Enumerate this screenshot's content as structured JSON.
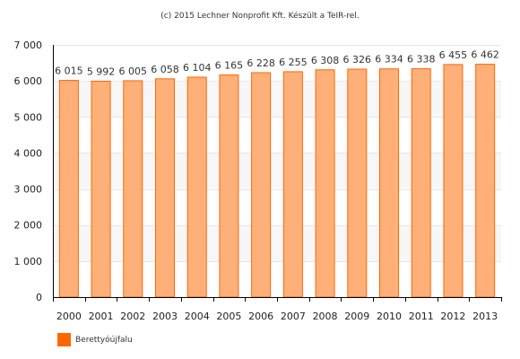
{
  "credit": "(c) 2015 Lechner Nonprofit Kft. Készült a TeIR-rel.",
  "colors": {
    "bar_fill": "#ffaf78",
    "bar_stroke": "#ff6600",
    "legend": "#ff6600",
    "plot_band": "#f7f7f7",
    "gridline": "#e6e6e6",
    "axis": "#000000"
  },
  "chart_data": {
    "type": "bar",
    "categories": [
      "2000",
      "2001",
      "2002",
      "2003",
      "2004",
      "2005",
      "2006",
      "2007",
      "2008",
      "2009",
      "2010",
      "2011",
      "2012",
      "2013"
    ],
    "series": [
      {
        "name": "Berettyóújfalu",
        "values": [
          6015,
          5992,
          6005,
          6058,
          6104,
          6165,
          6228,
          6255,
          6308,
          6326,
          6334,
          6338,
          6455,
          6462
        ],
        "data_labels": [
          "6 015",
          "5 992",
          "6 005",
          "6 058",
          "6 104",
          "6 165",
          "6 228",
          "6 255",
          "6 308",
          "6 326",
          "6 334",
          "6 338",
          "6 455",
          "6 462"
        ]
      }
    ],
    "ylim": [
      0,
      7000
    ],
    "yticks": [
      0,
      1000,
      2000,
      3000,
      4000,
      5000,
      6000,
      7000
    ],
    "ytick_labels": [
      "0",
      "1 000",
      "2 000",
      "3 000",
      "4 000",
      "5 000",
      "6 000",
      "7 000"
    ],
    "xlabel": "",
    "ylabel": "",
    "grid": true,
    "legend_position": "bottom-left"
  }
}
